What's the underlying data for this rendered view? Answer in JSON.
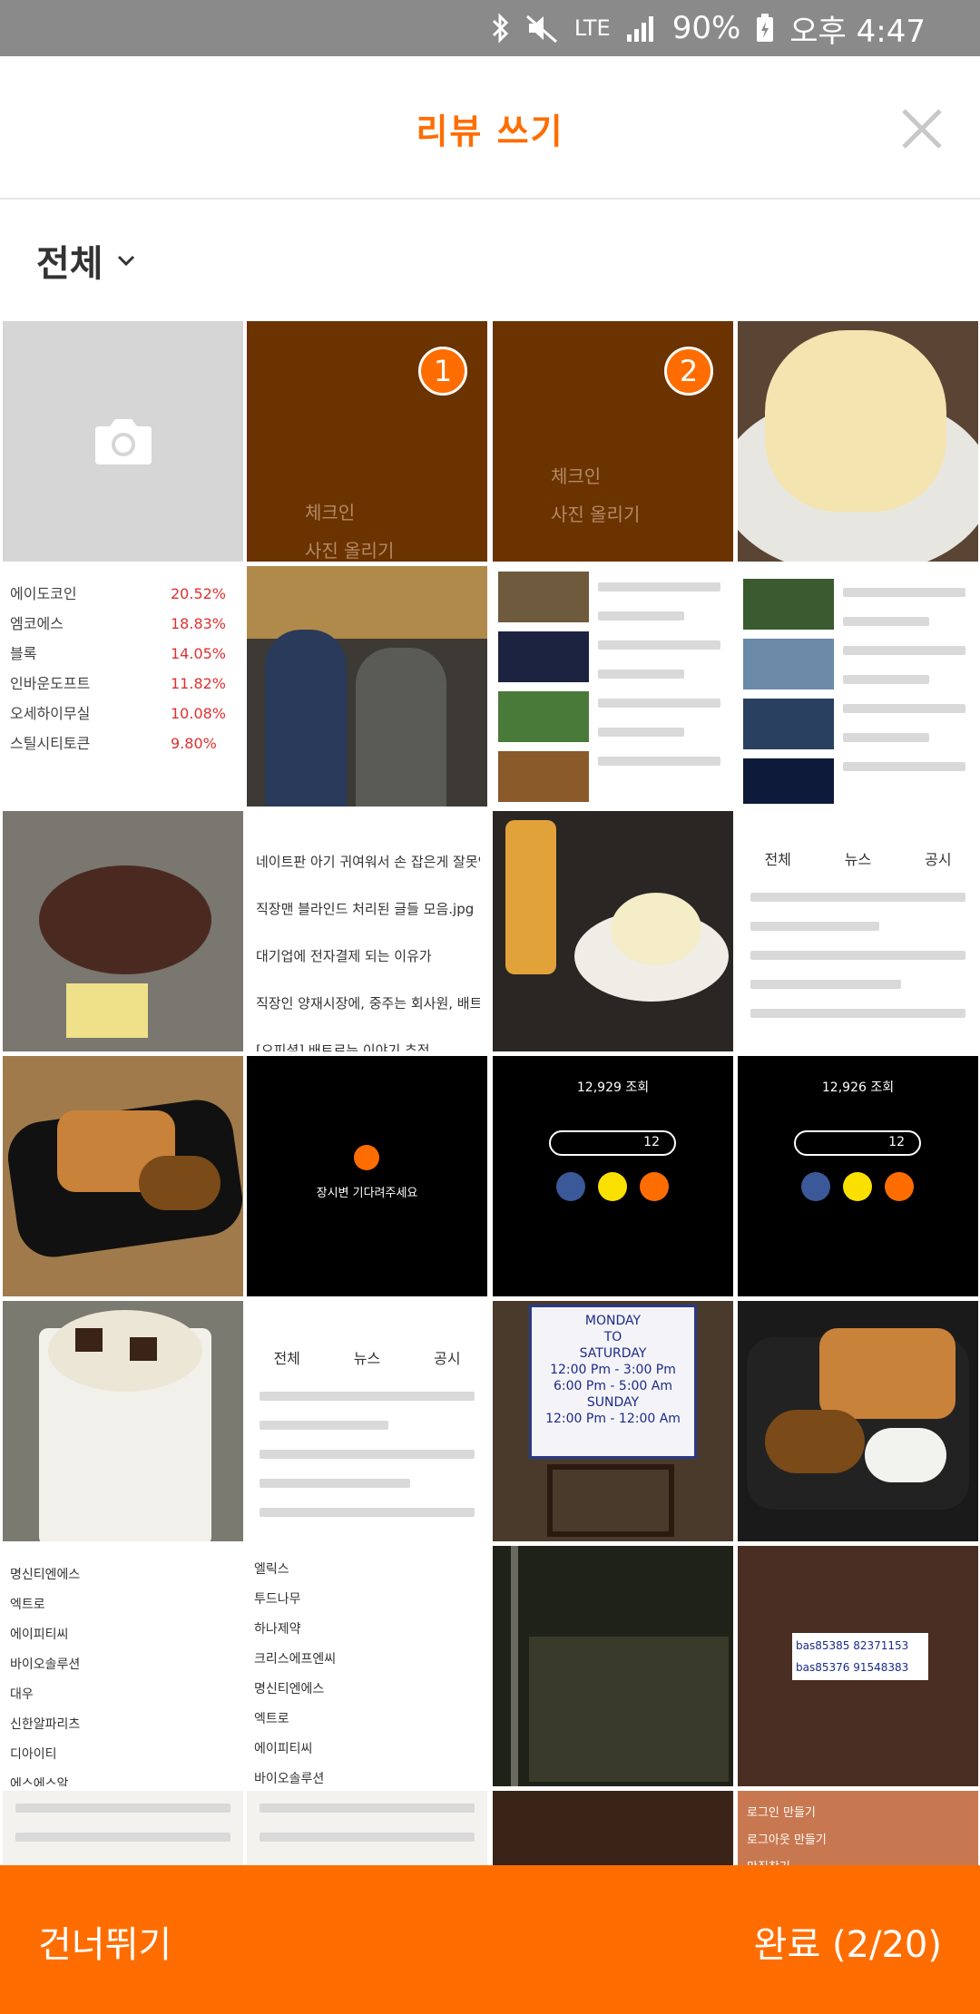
{
  "status_bar": {
    "network": "LTE",
    "battery": "90%",
    "time": "오후 4:47"
  },
  "header": {
    "title": "리뷰 쓰기"
  },
  "filter": {
    "label": "전체"
  },
  "tiles": {
    "selected": [
      {
        "order": "1",
        "line1": "체크인",
        "line2": "사진 올리기"
      },
      {
        "order": "2",
        "line1": "체크인",
        "line2": "사진 올리기"
      }
    ],
    "table_rows": [
      "에이도코인",
      "엠코에스",
      "블록",
      "인바운도프트",
      "오세하이무실",
      "스틸시티토큰"
    ],
    "list_titles": [
      "네이트판 아기 귀여워서 손 잡은게 잘못인가요?",
      "직장맨 블라인드 처리된 글들 모음.jpg",
      "대기업에 전자결제 되는 이유가",
      "직장인 양재시장에, 중주는 회사원, 배트로는 주식",
      "[오피셜] 배트로는 이야기 추적"
    ],
    "receipt": "bas85385 82371153 bas85376 91548383",
    "restaurant_hours": [
      "MONDAY",
      "TO",
      "SATURDAY",
      "12:00 Pm - 3:00 Pm",
      "6:00 Pm - 5:00 Am",
      "SUNDAY",
      "12:00 Pm - 12:00 Am"
    ],
    "stock_rows": [
      "엘릭스",
      "투드나무",
      "하나제약",
      "크리스에프엔씨",
      "명신티엔에스",
      "엑트로",
      "에이피티씨",
      "바이오솔루션"
    ],
    "stock_rows_left": [
      "명신티엔에스",
      "엑트로",
      "에이피티씨",
      "바이오솔루션",
      "대우",
      "신한알파리츠",
      "디아이티",
      "에스에스알"
    ],
    "news_tabs": [
      "전체",
      "뉴스",
      "공시"
    ],
    "share_views": "12,929 조회",
    "share_views_2": "12,926 조회",
    "share_count": "12",
    "share_count_2": "12",
    "empty_state": "장시변 기다려주세요",
    "note_items": [
      "로그인 만들기",
      "로그아웃 만들기",
      "맛집찾기"
    ]
  },
  "footer": {
    "skip_label": "건너뛰기",
    "done_label": "완료 (2/20)"
  },
  "colors": {
    "accent": "#ff6d00",
    "selected_dim": "#6b3300"
  }
}
